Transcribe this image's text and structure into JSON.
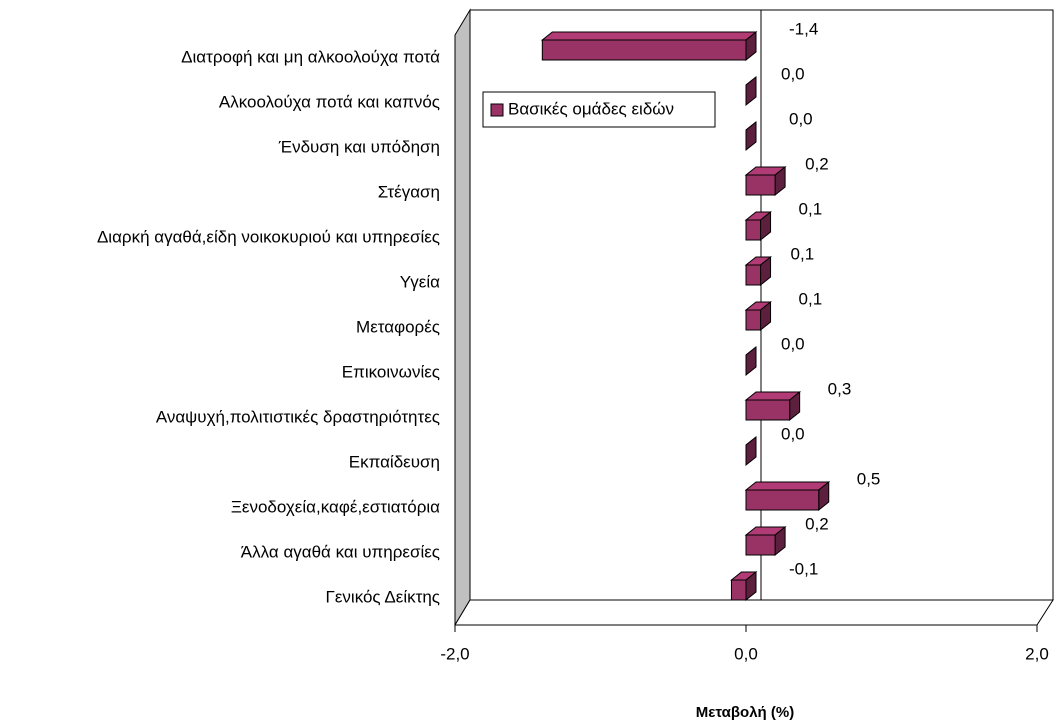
{
  "chart_data": {
    "type": "bar",
    "orientation": "horizontal",
    "x_label": "Μεταβολή (%)",
    "categories": [
      "Διατροφή και μη αλκοολούχα ποτά",
      "Αλκοολούχα ποτά και καπνός",
      "Ένδυση και υπόδηση",
      "Στέγαση",
      "Διαρκή αγαθά,είδη νοικοκυριού και υπηρεσίες",
      "Υγεία",
      "Μεταφορές",
      "Επικοινωνίες",
      "Αναψυχή,πολιτιστικές δραστηριότητες",
      "Εκπαίδευση",
      "Ξενοδοχεία,καφέ,εστιατόρια",
      "Άλλα αγαθά και υπηρεσίες",
      "Γενικός Δείκτης"
    ],
    "series": [
      {
        "name": "Βασικές ομάδες ειδών",
        "color": "#993366",
        "values": [
          -1.4,
          0,
          0,
          0.2,
          0.1,
          0.1,
          0.1,
          0,
          0.3,
          0,
          0.5,
          0.2,
          -0.1
        ],
        "value_labels": [
          "-1,4",
          "0,0",
          "0,0",
          "0,2",
          "0,1",
          "0,1",
          "0,1",
          "0,0",
          "0,3",
          "0,0",
          "0,5",
          "0,2",
          "-0,1"
        ]
      }
    ],
    "xlim": [
      -2,
      2
    ],
    "xticks": [
      {
        "value": -2,
        "label": "-2,0"
      },
      {
        "value": 0,
        "label": "0,0"
      },
      {
        "value": 2,
        "label": "2,0"
      }
    ],
    "legend": "upper left"
  }
}
